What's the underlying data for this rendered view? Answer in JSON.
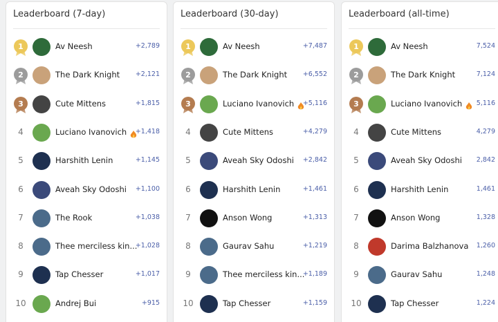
{
  "boards": [
    {
      "title": "Leaderboard (7-day)",
      "rows": [
        {
          "rank": "1",
          "name": "Av Neesh",
          "score": "+2,789"
        },
        {
          "rank": "2",
          "name": "The Dark Knight",
          "score": "+2,121"
        },
        {
          "rank": "3",
          "name": "Cute Mittens",
          "score": "+1,815"
        },
        {
          "rank": "4",
          "name": "Luciano Ivanovich",
          "score": "+1,418"
        },
        {
          "rank": "5",
          "name": "Harshith Lenin",
          "score": "+1,145"
        },
        {
          "rank": "6",
          "name": "Aveah Sky Odoshi",
          "score": "+1,100"
        },
        {
          "rank": "7",
          "name": "The Rook",
          "score": "+1,038"
        },
        {
          "rank": "8",
          "name": "Thee merciless kin...",
          "score": "+1,028"
        },
        {
          "rank": "9",
          "name": "Tap Chesser",
          "score": "+1,017"
        },
        {
          "rank": "10",
          "name": "Andrej Bui",
          "score": "+915"
        }
      ]
    },
    {
      "title": "Leaderboard (30-day)",
      "rows": [
        {
          "rank": "1",
          "name": "Av Neesh",
          "score": "+7,487"
        },
        {
          "rank": "2",
          "name": "The Dark Knight",
          "score": "+6,552"
        },
        {
          "rank": "3",
          "name": "Luciano Ivanovich",
          "score": "+5,116"
        },
        {
          "rank": "4",
          "name": "Cute Mittens",
          "score": "+4,279"
        },
        {
          "rank": "5",
          "name": "Aveah Sky Odoshi",
          "score": "+2,842"
        },
        {
          "rank": "6",
          "name": "Harshith Lenin",
          "score": "+1,461"
        },
        {
          "rank": "7",
          "name": "Anson Wong",
          "score": "+1,313"
        },
        {
          "rank": "8",
          "name": "Gaurav Sahu",
          "score": "+1,219"
        },
        {
          "rank": "9",
          "name": "Thee merciless kin...",
          "score": "+1,189"
        },
        {
          "rank": "10",
          "name": "Tap Chesser",
          "score": "+1,159"
        }
      ]
    },
    {
      "title": "Leaderboard (all-time)",
      "rows": [
        {
          "rank": "1",
          "name": "Av Neesh",
          "score": "7,524"
        },
        {
          "rank": "2",
          "name": "The Dark Knight",
          "score": "7,124"
        },
        {
          "rank": "3",
          "name": "Luciano Ivanovich",
          "score": "5,116"
        },
        {
          "rank": "4",
          "name": "Cute Mittens",
          "score": "4,279"
        },
        {
          "rank": "5",
          "name": "Aveah Sky Odoshi",
          "score": "2,842"
        },
        {
          "rank": "6",
          "name": "Harshith Lenin",
          "score": "1,461"
        },
        {
          "rank": "7",
          "name": "Anson Wong",
          "score": "1,328"
        },
        {
          "rank": "8",
          "name": "Darima Balzhanova",
          "score": "1,260"
        },
        {
          "rank": "9",
          "name": "Gaurav Sahu",
          "score": "1,248"
        },
        {
          "rank": "10",
          "name": "Tap Chesser",
          "score": "1,224"
        }
      ]
    }
  ]
}
